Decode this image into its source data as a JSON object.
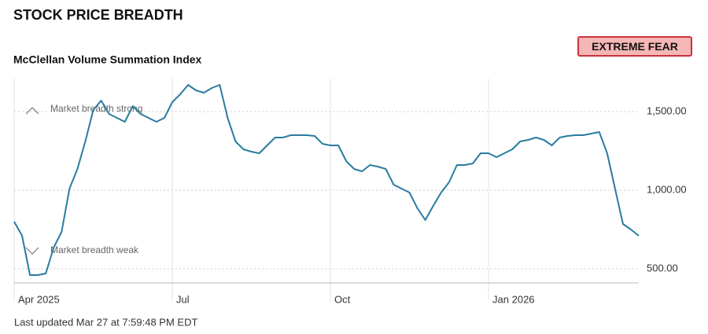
{
  "header": {
    "title": "STOCK PRICE BREADTH",
    "badge": "EXTREME FEAR"
  },
  "chart_data": {
    "type": "line",
    "title": "McClellan Volume Summation Index",
    "categories": [
      "Apr 2025",
      null,
      null,
      null,
      null,
      null,
      null,
      null,
      null,
      null,
      null,
      null,
      null,
      null,
      null,
      null,
      null,
      null,
      null,
      null,
      "Jul",
      null,
      null,
      null,
      null,
      null,
      null,
      null,
      null,
      null,
      null,
      null,
      null,
      null,
      null,
      null,
      null,
      null,
      null,
      null,
      "Oct",
      null,
      null,
      null,
      null,
      null,
      null,
      null,
      null,
      null,
      null,
      null,
      null,
      null,
      null,
      null,
      null,
      null,
      null,
      null,
      "Jan 2026",
      null,
      null,
      null,
      null,
      null,
      null,
      null,
      null,
      null,
      null,
      null,
      null,
      null,
      null,
      null,
      null,
      null,
      null,
      null
    ],
    "series": [
      {
        "name": "McClellan Volume Summation Index",
        "color": "#2a7ba0",
        "values": [
          800,
          710,
          460,
          460,
          470,
          635,
          735,
          1010,
          1135,
          1310,
          1510,
          1570,
          1485,
          1460,
          1435,
          1535,
          1485,
          1460,
          1435,
          1460,
          1560,
          1610,
          1670,
          1635,
          1620,
          1650,
          1670,
          1460,
          1310,
          1260,
          1245,
          1235,
          1285,
          1335,
          1335,
          1350,
          1350,
          1350,
          1345,
          1295,
          1285,
          1285,
          1185,
          1135,
          1120,
          1160,
          1150,
          1135,
          1035,
          1010,
          985,
          885,
          810,
          900,
          985,
          1050,
          1160,
          1160,
          1170,
          1235,
          1235,
          1210,
          1235,
          1260,
          1310,
          1320,
          1335,
          1320,
          1285,
          1335,
          1345,
          1350,
          1350,
          1360,
          1370,
          1235,
          1010,
          785,
          750,
          710
        ]
      }
    ],
    "ylim": [
      410,
      1710
    ],
    "yticks": [
      {
        "value": 500,
        "label": "500.00"
      },
      {
        "value": 1000,
        "label": "1,000.00"
      },
      {
        "value": 1500,
        "label": "1,500.00"
      }
    ],
    "grid": true,
    "annotations": [
      "Market breadth strong",
      "Market breadth weak"
    ],
    "footer": "Last updated Mar 27 at 7:59:48 PM EDT"
  }
}
